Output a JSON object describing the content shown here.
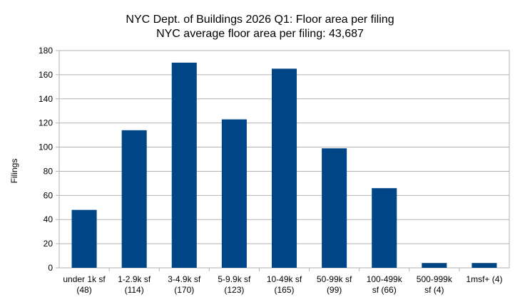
{
  "chart_data": {
    "type": "bar",
    "title": "NYC Dept. of Buildings 2026 Q1: Floor area per filing",
    "subtitle": "NYC average floor area per filing: 43,687",
    "xlabel": "",
    "ylabel": "Filings",
    "ylim": [
      0,
      180
    ],
    "yticks": [
      0,
      20,
      40,
      60,
      80,
      100,
      120,
      140,
      160,
      180
    ],
    "grid": true,
    "legend": "none",
    "bar_color": "#004586",
    "categories": [
      [
        "under 1k sf",
        "(48)"
      ],
      [
        "1-2.9k sf",
        "(114)"
      ],
      [
        "3-4.9k sf",
        "(170)"
      ],
      [
        "5-9.9k sf",
        "(123)"
      ],
      [
        "10-49k sf",
        "(165)"
      ],
      [
        "50-99k sf",
        "(99)"
      ],
      [
        "100-499k",
        "sf (66)"
      ],
      [
        "500-999k",
        "sf (4)"
      ],
      [
        "1msf+ (4)"
      ]
    ],
    "values": [
      48,
      114,
      170,
      123,
      165,
      99,
      66,
      4,
      4
    ]
  }
}
